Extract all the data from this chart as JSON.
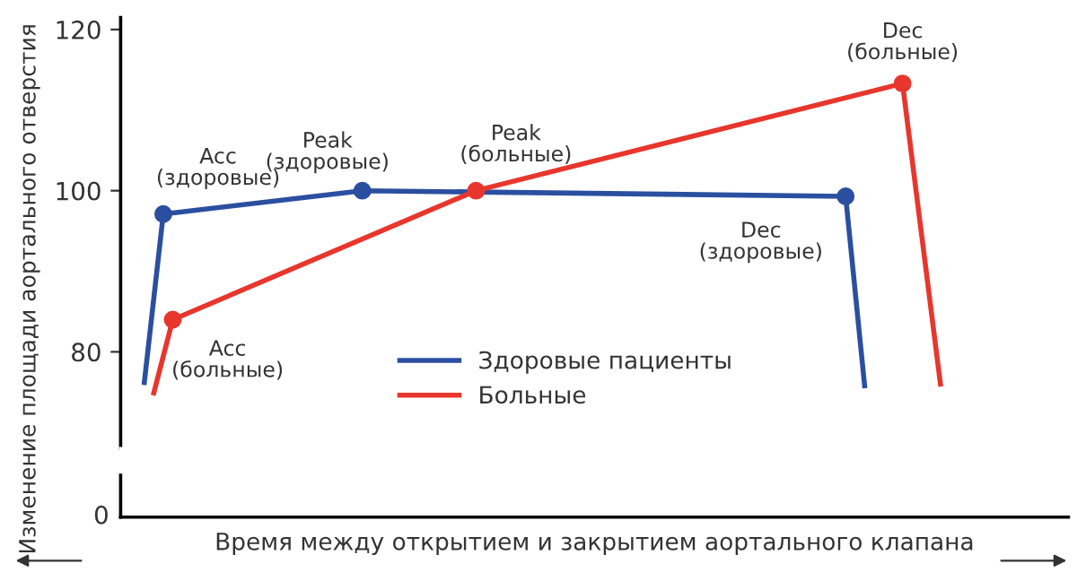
{
  "chart_data": [
    {
      "type": "line",
      "ylabel": "Изменение площади аортального отверстия",
      "categories": [
        null,
        null,
        null,
        null,
        null,
        null,
        null,
        null,
        null,
        null,
        null,
        null,
        null,
        null,
        null,
        null,
        null,
        null,
        null,
        null,
        null,
        null,
        null,
        null,
        null,
        null,
        null,
        null,
        null,
        null,
        null,
        null,
        null,
        null,
        null,
        null,
        null,
        null,
        null,
        null,
        null,
        null,
        null,
        null,
        null,
        null,
        null,
        null,
        null,
        null,
        null,
        null,
        null,
        null,
        null,
        null,
        null,
        null,
        null,
        null,
        null,
        null,
        null,
        null,
        null,
        null,
        null,
        null,
        null,
        null,
        null,
        null,
        null,
        null,
        null,
        null,
        null,
        null,
        null,
        null,
        null,
        null,
        null,
        null,
        null,
        null,
        null,
        null,
        null,
        null,
        null,
        null,
        null,
        null,
        null,
        null,
        null,
        null,
        null,
        null
      ],
      "ylim": [
        68,
        121.5
      ],
      "yticks": [
        80,
        100,
        120
      ],
      "tick_labels": "y",
      "legend": "bottom",
      "line_style": "solid",
      "marker": "none",
      "series": [
        {
          "name": "Здоровые пациенты",
          "color": "#2b4fa0",
          "values": [
            null,
            null,
            76.2,
            null,
            97.1,
            null,
            null,
            null,
            null,
            null,
            null,
            null,
            null,
            null,
            null,
            null,
            null,
            null,
            null,
            null,
            null,
            null,
            null,
            null,
            null,
            100,
            null,
            null,
            null,
            null,
            null,
            null,
            null,
            null,
            null,
            null,
            null,
            null,
            null,
            null,
            null,
            null,
            null,
            null,
            null,
            null,
            null,
            null,
            null,
            null,
            null,
            null,
            null,
            null,
            null,
            null,
            null,
            null,
            null,
            null,
            null,
            null,
            null,
            null,
            null,
            null,
            null,
            null,
            null,
            null,
            null,
            null,
            null,
            null,
            null,
            null,
            99.3,
            null,
            75.8,
            null,
            null,
            null,
            null,
            null,
            null,
            null,
            null,
            null,
            null,
            null,
            null,
            null,
            null,
            null,
            null,
            null,
            null,
            null,
            null,
            null
          ]
        },
        {
          "name": "Больные",
          "color": "#e8362d",
          "values": [
            null,
            null,
            null,
            74.9,
            null,
            84.0,
            null,
            null,
            null,
            null,
            null,
            null,
            null,
            null,
            null,
            null,
            null,
            null,
            null,
            null,
            null,
            null,
            null,
            null,
            null,
            null,
            null,
            null,
            null,
            null,
            null,
            null,
            null,
            null,
            null,
            null,
            null,
            100,
            null,
            null,
            null,
            null,
            null,
            null,
            null,
            null,
            null,
            null,
            null,
            null,
            null,
            null,
            null,
            null,
            null,
            null,
            null,
            null,
            null,
            null,
            null,
            null,
            null,
            null,
            null,
            null,
            null,
            null,
            null,
            null,
            null,
            null,
            null,
            null,
            null,
            null,
            null,
            null,
            null,
            null,
            null,
            null,
            113.3,
            null,
            null,
            null,
            76,
            null,
            null,
            null,
            null,
            null,
            null,
            null,
            null,
            null,
            null,
            null,
            null,
            null
          ]
        },
        {
          "type": "scatter",
          "marker": "circle",
          "color": "#2b4fa0",
          "values": [
            null,
            null,
            null,
            null,
            97.1,
            null,
            null,
            null,
            null,
            null,
            null,
            null,
            null,
            null,
            null,
            null,
            null,
            null,
            null,
            null,
            null,
            null,
            null,
            null,
            null,
            100,
            null,
            null,
            null,
            null,
            null,
            null,
            null,
            null,
            null,
            null,
            null,
            null,
            null,
            null,
            null,
            null,
            null,
            null,
            null,
            null,
            null,
            null,
            null,
            null,
            null,
            null,
            null,
            null,
            null,
            null,
            null,
            null,
            null,
            null,
            null,
            null,
            null,
            null,
            null,
            null,
            null,
            null,
            null,
            null,
            null,
            null,
            null,
            null,
            null,
            null,
            99.3,
            null,
            null,
            null,
            null,
            null,
            null,
            null,
            null,
            null,
            null,
            null,
            null,
            null,
            null,
            null,
            null,
            null,
            null,
            null,
            null,
            null,
            null,
            null
          ]
        },
        {
          "type": "scatter",
          "marker": "circle",
          "color": "#e8362d",
          "values": [
            null,
            null,
            null,
            null,
            null,
            84.0,
            null,
            null,
            null,
            null,
            null,
            null,
            null,
            null,
            null,
            null,
            null,
            null,
            null,
            null,
            null,
            null,
            null,
            null,
            null,
            null,
            null,
            null,
            null,
            null,
            null,
            null,
            null,
            null,
            null,
            null,
            null,
            100,
            null,
            null,
            null,
            null,
            null,
            null,
            null,
            null,
            null,
            null,
            null,
            null,
            null,
            null,
            null,
            null,
            null,
            null,
            null,
            null,
            null,
            null,
            null,
            null,
            null,
            null,
            null,
            null,
            null,
            null,
            null,
            null,
            null,
            null,
            null,
            null,
            null,
            null,
            null,
            null,
            null,
            null,
            null,
            null,
            113.3,
            null,
            null,
            null,
            null,
            null,
            null,
            null,
            null,
            null,
            null,
            null,
            null,
            null,
            null,
            null,
            null,
            null
          ]
        }
      ],
      "annotations": [
        "Acc\n(здоровые)",
        "Peak\n(здоровые)",
        "Dec\n(здоровые)",
        "Acc\n(больные)",
        "Peak\n(больные)",
        "Dec\n(больные)"
      ]
    },
    {
      "type": "other",
      "xlabel": "Время между открытием и закрытием аортального клапана",
      "annotations": [
        "0"
      ]
    }
  ]
}
